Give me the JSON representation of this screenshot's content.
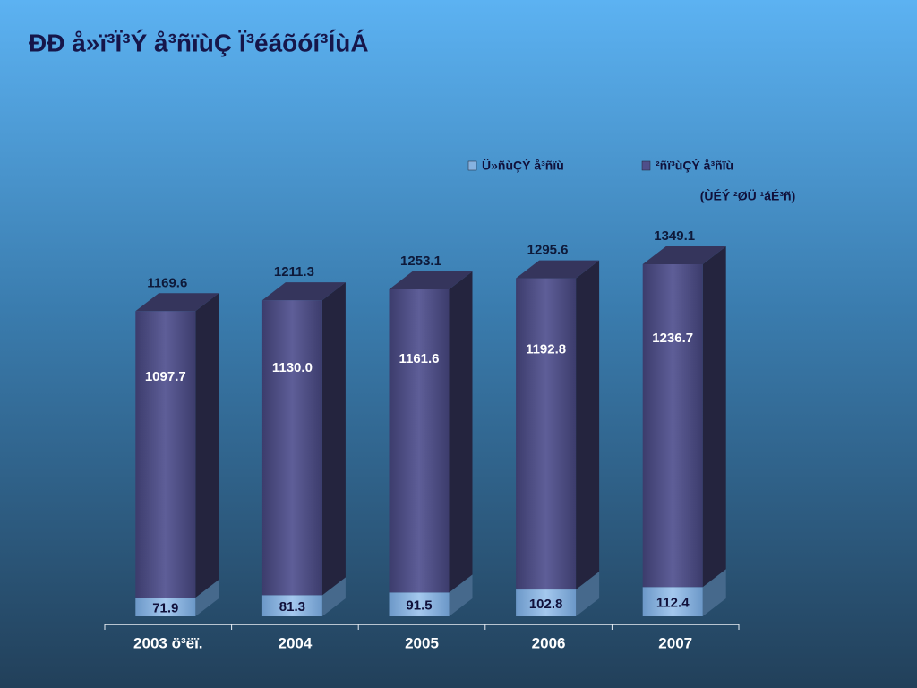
{
  "chart_data": {
    "type": "bar",
    "stacked": true,
    "title": "ÐÐ å»ï³Ï³Ý å³ñïùÇ Ï³éáõóí³ÍùÁ",
    "subtitle": "(ÙÉÝ ²ØÜ ¹áÉ³ñ)",
    "categories": [
      "2003 ö³ëï.",
      "2004",
      "2005",
      "2006",
      "2007"
    ],
    "series": [
      {
        "name": "Ü»ñùÇÝ å³ñïù",
        "color": "#86b2e0",
        "values": [
          71.9,
          81.3,
          91.5,
          102.8,
          112.4
        ]
      },
      {
        "name": "²ñï³ùÇÝ å³ñïù",
        "color": "#4f4f8a",
        "values": [
          1097.7,
          1130,
          1161.6,
          1192.8,
          1236.7
        ],
        "value_labels": [
          "1097.7",
          "1130.0",
          "1161.6",
          "1192.8",
          "1236.7"
        ]
      }
    ],
    "totals": [
      1169.6,
      1211.3,
      1253.1,
      1295.6,
      1349.1
    ]
  }
}
